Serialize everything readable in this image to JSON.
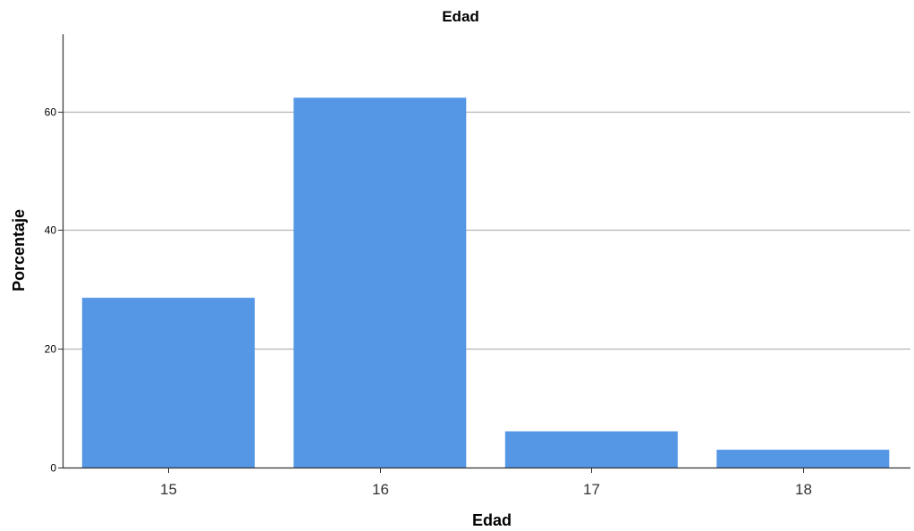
{
  "chart_data": {
    "type": "bar",
    "title": "Edad",
    "xlabel": "Edad",
    "ylabel": "Porcentaje",
    "categories": [
      "15",
      "16",
      "17",
      "18"
    ],
    "values": [
      28.6,
      62.3,
      6.1,
      3.0
    ],
    "ylim": [
      0,
      73
    ],
    "yticks": [
      0,
      20,
      40,
      60
    ],
    "grid": true,
    "bar_color": "#5597e5",
    "gridline_color": "#b4b4b4",
    "axis_color": "#333333"
  }
}
